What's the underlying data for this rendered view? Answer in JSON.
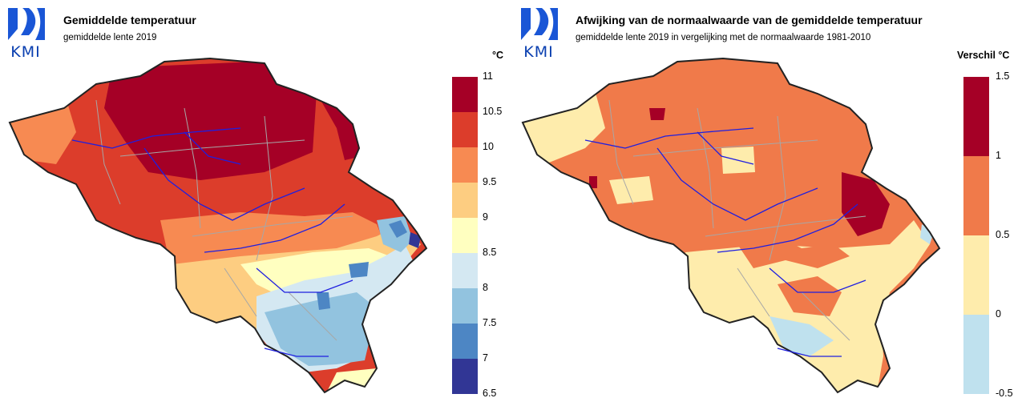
{
  "logo": {
    "text": "KMI",
    "color": "#1a56d6"
  },
  "left_panel": {
    "title": "Gemiddelde temperatuur",
    "subtitle": "gemiddelde lente 2019",
    "unit": "°C",
    "legend": {
      "ticks": [
        "11",
        "10.5",
        "10",
        "9.5",
        "9",
        "8.5",
        "8",
        "7.5",
        "7",
        "6.5"
      ],
      "colors": [
        "#a50026",
        "#dc3d2b",
        "#f78a52",
        "#fdcd81",
        "#ffffc0",
        "#d4e8f2",
        "#92c3df",
        "#4d86c4",
        "#313695"
      ]
    }
  },
  "right_panel": {
    "title": "Afwijking van de normaalwaarde van de gemiddelde temperatuur",
    "subtitle": "gemiddelde lente 2019 in vergelijking met de normaalwaarde 1981-2010",
    "unit": "Verschil °C",
    "legend": {
      "ticks": [
        "1.5",
        "1",
        "0.5",
        "0",
        "-0.5"
      ],
      "colors": [
        "#a50026",
        "#f07a4a",
        "#feecac",
        "#bfe1ee"
      ]
    }
  }
}
